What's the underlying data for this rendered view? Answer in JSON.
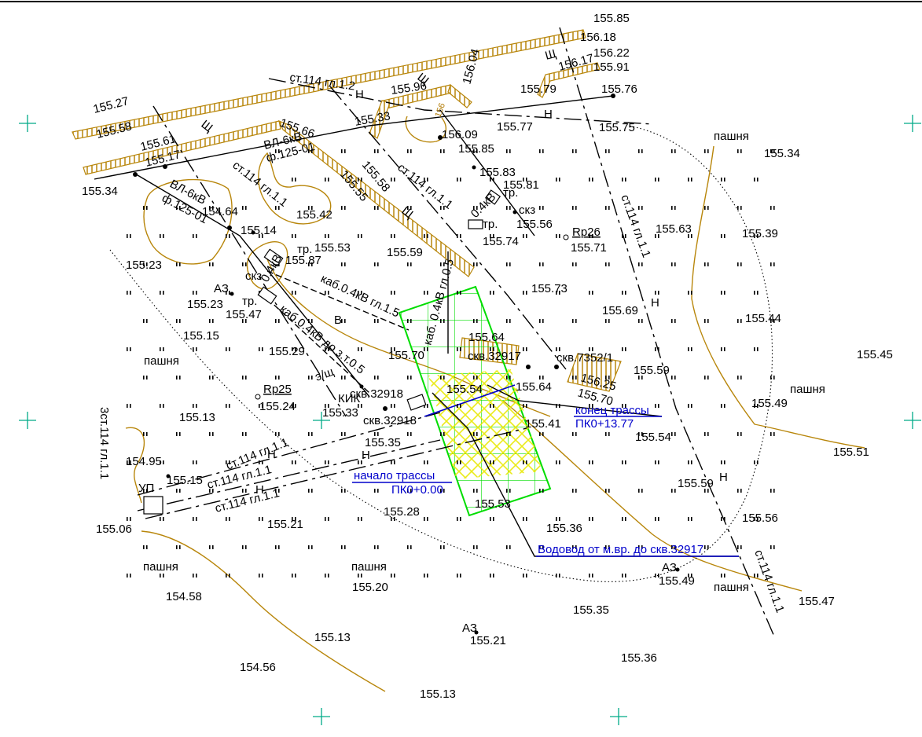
{
  "colors": {
    "background": "#ffffff",
    "contour": "#b8860b",
    "construction": "#00dd00",
    "hatch": "#e8e800",
    "route": "#0000cc",
    "ink": "#000000"
  },
  "map": {
    "elevations": [
      "155.85",
      "156.18",
      "156.22",
      "155.91",
      "156.17",
      "155.79",
      "155.76",
      "156.04",
      "155.96",
      "156.09",
      "155.85",
      "155.77",
      "155.75",
      "155.83",
      "155.81",
      "155.56",
      "155.74",
      "155.27",
      "155.58",
      "155.61",
      "155.17",
      "155.66",
      "155.33",
      "155.34",
      "154.64",
      "155.14",
      "155.42",
      "155.55",
      "155.58",
      "155.53",
      "155.87",
      "155.59",
      "155.63",
      "155.39",
      "155.34",
      "155.71",
      "155.73",
      "155.23",
      "155.23",
      "155.47",
      "155.69",
      "155.44",
      "155.15",
      "155.29",
      "155.64",
      "155.70",
      "155.45",
      "156.25",
      "155.70",
      "155.59",
      "155.24",
      "155.54",
      "155.64",
      "155.49",
      "155.51",
      "155.13",
      "155.33",
      "155.41",
      "155.35",
      "155.54",
      "154.95",
      "155.15",
      "155.53",
      "155.59",
      "155.28",
      "155.21",
      "155.36",
      "155.56",
      "155.06",
      "155.49",
      "155.47",
      "154.58",
      "155.20",
      "155.35",
      "155.13",
      "155.21",
      "155.36",
      "154.56",
      "155.13"
    ],
    "labels": {
      "arable_land": "пашня",
      "power_line_1": "ВЛ-6кВ",
      "power_line_1_id": "ф.125-01",
      "power_line_2": "ВЛ-6кВ",
      "power_line_2_id": "ф.125-01",
      "pipe_1": "ст.114  гл.1.2",
      "pipe_2": "ст.114  гл.1.1",
      "pipe_3": "ст.114  гл.1.1",
      "pipe_4": "ст.114  гл.1.1",
      "pipe_5": "ст.114  гл.1.1",
      "pipe_6": "ст.114  гл.1.1",
      "pipe_7": "ст.114  гл.1.1",
      "pipe_8": "ст.114  гл.1.1",
      "pipe_9": "3ст.114  гл.1.1",
      "cable_1": "каб.0.4кВ  гл.1.5",
      "cable_2": "каб.0.4кВ  до  з.т.0.5",
      "cable_3": "0.4кВ",
      "cable_4": "каб. 0.4кВ  гл.0.5",
      "cable_5": "0.4кВ",
      "tr_1": "тр.",
      "tr_2": "тр.",
      "tr_3": "тр.",
      "tr_4": "тр.",
      "skz_1": "скз",
      "skz_2": "скз",
      "az_1": "АЗ",
      "az_2": "АЗ",
      "az_3": "АЗ",
      "rp_25": "Rp25",
      "rp_26": "Rp26",
      "well_1": "скв.32918",
      "well_2": "скв.32918",
      "well_3": "скв.32917",
      "well_4": "скв.7352/1",
      "kik": "КИК",
      "e_sch": "э/щ",
      "up": "УП",
      "sch": "Щ",
      "h": "Н",
      "v": "В",
      "orange_156": "156"
    },
    "route": {
      "start_label": "начало трассы",
      "start_pk": "ПК0+0.00",
      "end_label": "конец трассы",
      "end_pk": "ПК0+13.77",
      "water_pipe": "Водовод от м.вр. до скв.32917"
    }
  }
}
